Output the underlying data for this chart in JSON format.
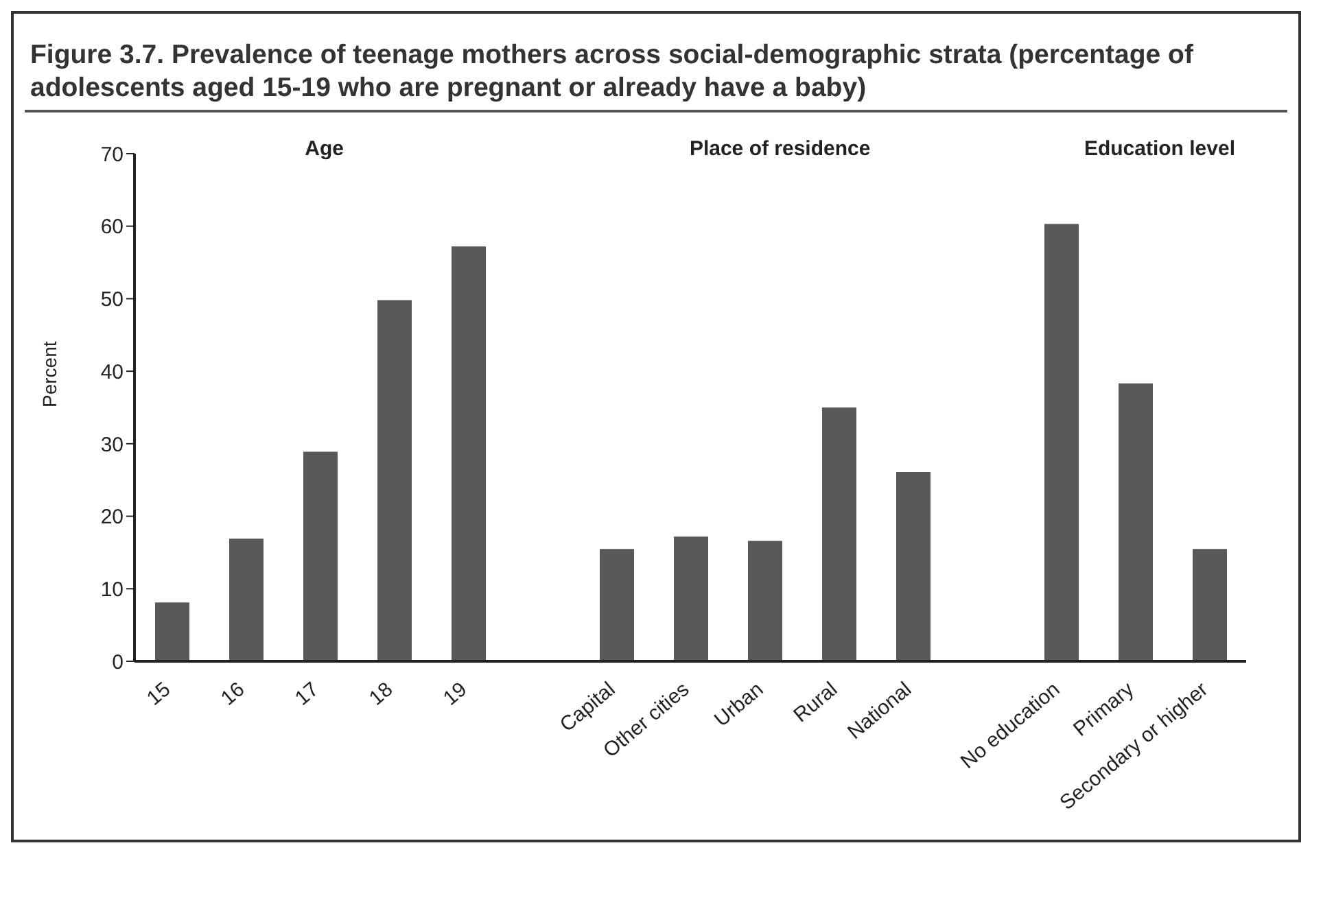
{
  "chart_data": {
    "type": "bar",
    "title": "Figure 3.7. Prevalence of teenage mothers across social-demographic strata (percentage of adolescents aged 15-19 who are pregnant or already have a baby)",
    "ylabel": "Percent",
    "categories": [
      "15",
      "16",
      "17",
      "18",
      "19",
      null,
      "Capital",
      "Other cities",
      "Urban",
      "Rural",
      "National",
      null,
      "No education",
      "Primary",
      "Secondary or higher"
    ],
    "values": [
      8.1,
      16.9,
      28.9,
      49.8,
      57.2,
      null,
      15.5,
      17.2,
      16.6,
      35.0,
      26.1,
      null,
      60.3,
      38.3,
      15.5
    ],
    "color": "#58595b",
    "ylim": [
      0,
      70
    ],
    "yticks": [
      0,
      10,
      20,
      30,
      40,
      50,
      60,
      70
    ],
    "annotations": [
      "Age",
      "Place of residence",
      "Education level"
    ],
    "grid": false,
    "legend": false
  }
}
